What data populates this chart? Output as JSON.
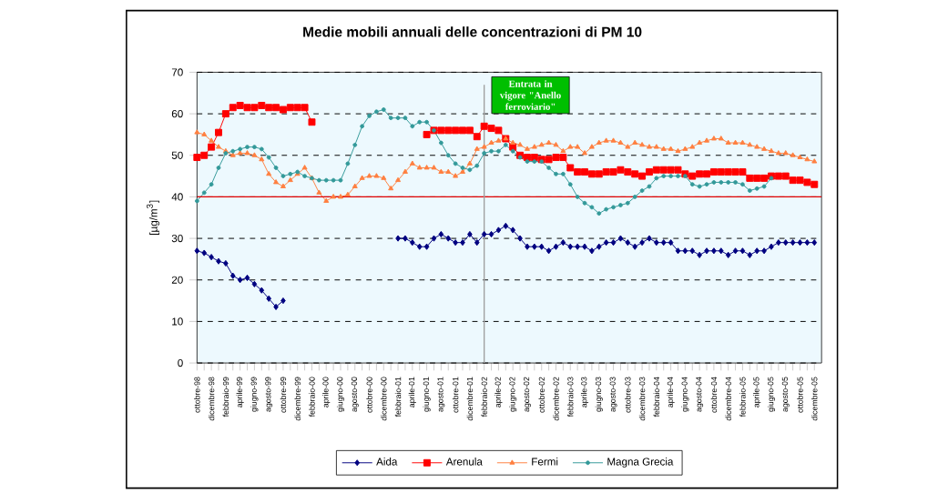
{
  "chart_data": {
    "type": "line",
    "title": "Medie mobili annuali delle concentrazioni di PM 10",
    "ylabel": "[µg/m$^{3}$]",
    "categories": [
      "ottobre-98",
      null,
      "dicembre-98",
      null,
      "febbraio-99",
      null,
      "aprile-99",
      null,
      "giugno-99",
      null,
      "agosto-99",
      null,
      "ottobre-99",
      null,
      "dicembre-99",
      null,
      "febbraio-00",
      null,
      "aprile-00",
      null,
      "giugno-00",
      null,
      "agosto-00",
      null,
      "ottobre-00",
      null,
      "dicembre-00",
      null,
      "febbraio-01",
      null,
      "aprile-01",
      null,
      "giugno-01",
      null,
      "agosto-01",
      null,
      "ottobre-01",
      null,
      "dicembre-01",
      null,
      "febbraio-02",
      null,
      "aprile-02",
      null,
      "giugno-02",
      null,
      "agosto-02",
      null,
      "ottobre-02",
      null,
      "dicembre-02",
      null,
      "febbraio-03",
      null,
      "aprile-03",
      null,
      "giugno-03",
      null,
      "agosto-03",
      null,
      "ottobre-03",
      null,
      "dicembre-03",
      null,
      "febbraio-04",
      null,
      "aprile-04",
      null,
      "giugno-04",
      null,
      "agosto-04",
      null,
      "ottobre-04",
      null,
      "dicembre-04",
      null,
      "febbraio-05",
      null,
      "aprile-05",
      null,
      "giugno-05",
      null,
      "agosto-05",
      null,
      "ottobre-05",
      null,
      "dicembre-05"
    ],
    "series": [
      {
        "name": "Aida",
        "color": "#000080",
        "marker": "diamond",
        "values": [
          27,
          26.5,
          25.5,
          24.5,
          24,
          21,
          20,
          20.5,
          19,
          17.5,
          15.5,
          13.5,
          15,
          null,
          null,
          null,
          null,
          null,
          null,
          null,
          null,
          null,
          null,
          null,
          null,
          null,
          null,
          null,
          30,
          30,
          29,
          28,
          28,
          30,
          31,
          30,
          29,
          29,
          31,
          29,
          31,
          31,
          32,
          33,
          32,
          30,
          28,
          28,
          28,
          27,
          28,
          29,
          28,
          28,
          28,
          27,
          28,
          29,
          29,
          30,
          29,
          28,
          29,
          30,
          29,
          29,
          29,
          27,
          27,
          27,
          26,
          27,
          27,
          27,
          26,
          27,
          27,
          26,
          27,
          27,
          28,
          29,
          29,
          29,
          29,
          29,
          29
        ]
      },
      {
        "name": "Arenula",
        "color": "#ff0000",
        "marker": "square",
        "values": [
          49.5,
          50,
          52,
          55.5,
          60,
          61.5,
          62,
          61.5,
          61.5,
          62,
          61.5,
          61.5,
          61,
          61.5,
          61.5,
          61.5,
          58,
          null,
          null,
          null,
          null,
          null,
          null,
          null,
          null,
          null,
          null,
          null,
          null,
          null,
          null,
          null,
          55,
          56,
          56,
          56,
          56,
          56,
          56,
          54.5,
          57,
          56.5,
          56,
          54,
          52,
          50,
          49.5,
          49.5,
          49,
          49,
          49.5,
          49.5,
          47,
          46,
          46,
          45.5,
          45.5,
          46,
          46,
          46.5,
          46,
          45.5,
          45,
          46,
          46.5,
          46.5,
          46.5,
          46.5,
          45.5,
          45,
          45.5,
          45.5,
          46,
          46,
          46,
          46,
          46,
          44.5,
          44.5,
          44.5,
          45,
          45,
          45,
          44,
          44,
          43.5,
          43
        ]
      },
      {
        "name": "Fermi",
        "color": "#ff8040",
        "marker": "triangle",
        "values": [
          55.5,
          55,
          53.5,
          52,
          51,
          50,
          50.5,
          50.5,
          50,
          49,
          45.5,
          43.5,
          42.5,
          44,
          45.5,
          47,
          44.5,
          41,
          39,
          40,
          40,
          40.5,
          42.5,
          44.5,
          45,
          45,
          44.5,
          42,
          44,
          46,
          48,
          47,
          47,
          47,
          46,
          46,
          45,
          46,
          48,
          51.5,
          52,
          53,
          53.5,
          54,
          53,
          52.5,
          51.5,
          52,
          52.5,
          53,
          52.5,
          51,
          52,
          52,
          50.5,
          52,
          53,
          53.5,
          53.5,
          53,
          52,
          53,
          52.5,
          52,
          52,
          51.5,
          51.5,
          51,
          51.5,
          52,
          53,
          53.5,
          54,
          54,
          53,
          53,
          53,
          52.5,
          52,
          51.5,
          51,
          50.5,
          50.5,
          50,
          49.5,
          49,
          48.5
        ]
      },
      {
        "name": "Magna Grecia",
        "color": "#339999",
        "marker": "circle",
        "values": [
          39,
          41,
          43,
          47,
          50.5,
          51,
          51.5,
          52,
          52,
          51.5,
          49.5,
          47,
          45,
          45.5,
          46,
          45,
          44.5,
          44,
          44,
          44,
          44,
          48,
          52.5,
          57,
          59.5,
          60.5,
          61,
          59,
          59,
          59,
          57,
          58,
          58,
          56,
          53,
          50,
          48,
          47,
          46.5,
          47.5,
          50.5,
          51,
          51,
          52.5,
          51,
          49.5,
          48.5,
          48.5,
          48.5,
          47,
          45.5,
          45.5,
          43,
          40,
          38.5,
          37.5,
          36,
          37,
          37.5,
          38,
          38.5,
          40,
          41.5,
          42.5,
          44.5,
          45,
          45,
          45,
          45,
          43,
          42.5,
          43,
          43.5,
          43.5,
          43.5,
          43.5,
          43,
          41.5,
          42,
          42.5,
          44.5,
          null,
          null,
          null,
          null,
          null,
          null
        ]
      }
    ],
    "ylim": [
      0,
      70
    ],
    "yticks": [
      0,
      10,
      20,
      30,
      40,
      50,
      60,
      70
    ],
    "grid": "y",
    "legend": "bottom",
    "ref_lines": [
      {
        "axis": "y",
        "value": 40,
        "color": "#e00000"
      },
      {
        "axis": "x",
        "value": "febbraio-02",
        "color": "#a0a0a0"
      }
    ],
    "annotations": [
      {
        "text": "Entrata in vigore \"Anello ferroviario\"",
        "x": "febbraio-02"
      }
    ]
  }
}
